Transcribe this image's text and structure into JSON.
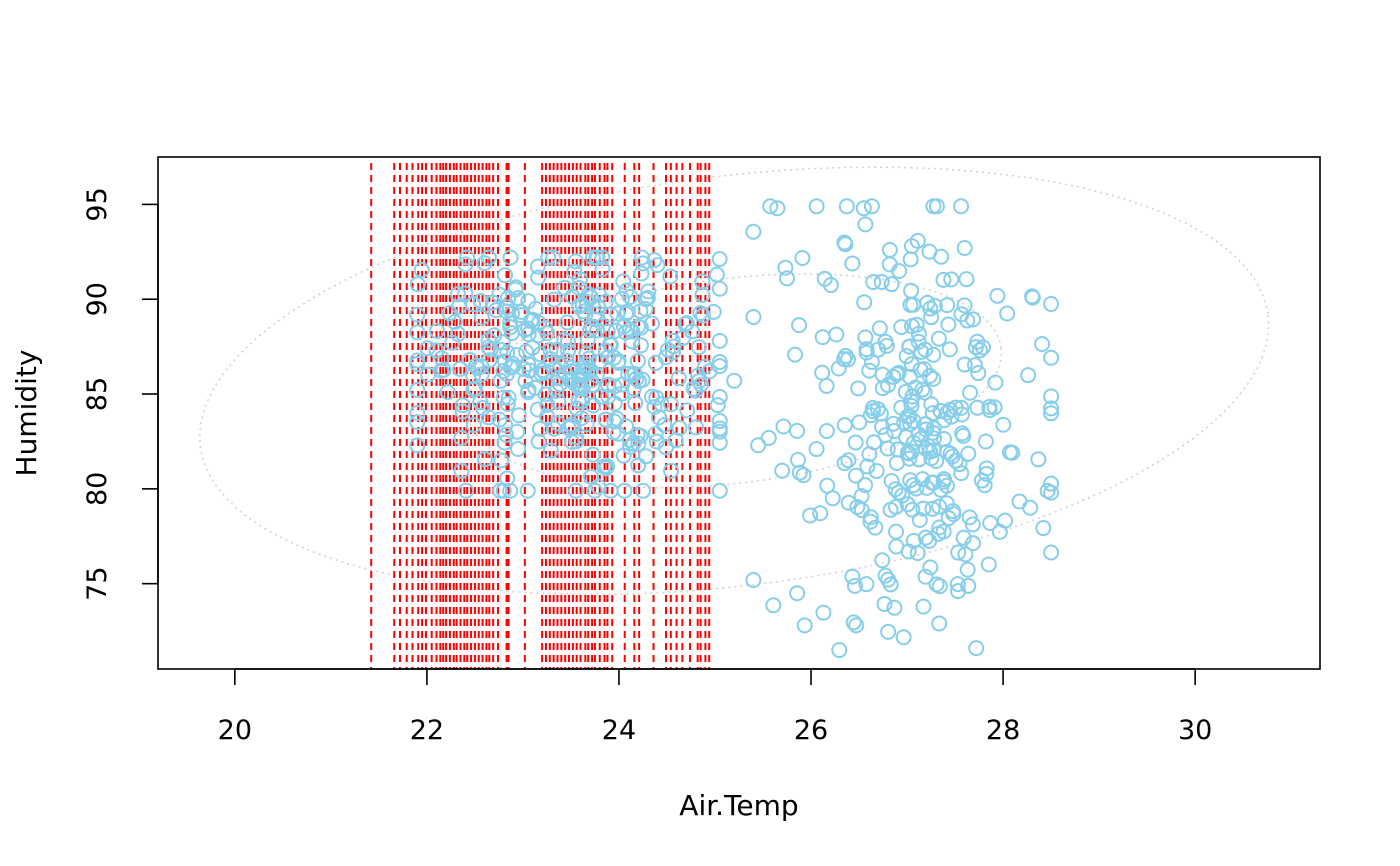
{
  "chart_data": {
    "type": "scatter",
    "title": "",
    "xlabel": "Air.Temp",
    "ylabel": "Humidity",
    "xlim": [
      19.2,
      31.3
    ],
    "ylim": [
      70.5,
      97.5
    ],
    "x_ticks": [
      20,
      22,
      24,
      26,
      28,
      30
    ],
    "x_tick_labels": [
      "20",
      "22",
      "24",
      "26",
      "28",
      "30"
    ],
    "y_ticks": [
      75,
      80,
      85,
      90,
      95
    ],
    "y_tick_labels": [
      "75",
      "80",
      "85",
      "90",
      "95"
    ],
    "grid": false,
    "legend": "none",
    "colors": {
      "points": "#87ceeb",
      "vlines": "#ff0000",
      "ellipse": "#d3d3d3"
    },
    "vertical_lines_x": [
      21.42,
      21.66,
      21.72,
      21.79,
      21.85,
      21.91,
      21.95,
      21.99,
      22.05,
      22.1,
      22.14,
      22.17,
      22.2,
      22.24,
      22.28,
      22.31,
      22.35,
      22.39,
      22.42,
      22.46,
      22.5,
      22.54,
      22.58,
      22.62,
      22.65,
      22.69,
      22.74,
      22.83,
      22.85,
      23.02,
      23.2,
      23.24,
      23.28,
      23.32,
      23.36,
      23.4,
      23.44,
      23.48,
      23.52,
      23.56,
      23.6,
      23.65,
      23.68,
      23.72,
      23.75,
      23.8,
      23.85,
      23.88,
      23.93,
      24.06,
      24.16,
      24.21,
      24.36,
      24.49,
      24.54,
      24.6,
      24.66,
      24.74,
      24.82,
      24.85,
      24.9,
      24.94
    ],
    "ellipses": [
      {
        "name": "",
        "style": "dotted",
        "center": [
          25.2,
          85.7
        ],
        "rx": 5.6,
        "ry": 10.8,
        "tilt_deg": -7
      },
      {
        "name": "",
        "style": "dotted",
        "center": [
          25.2,
          85.7
        ],
        "rx": 2.8,
        "ry": 5.4,
        "tilt_deg": -7
      }
    ],
    "clusters": [
      {
        "name": "",
        "center": [
          23.5,
          86.5
        ],
        "sd": [
          0.8,
          3.0
        ],
        "n": 340,
        "range_x": [
          21.9,
          25.05
        ],
        "range_y": [
          79.9,
          92.2
        ]
      },
      {
        "name": "",
        "center": [
          27.1,
          83.0
        ],
        "sd": [
          0.65,
          5.0
        ],
        "n": 300,
        "range_x": [
          25.4,
          28.5
        ],
        "range_y": [
          71.5,
          94.9
        ]
      }
    ],
    "extra_points": [
      [
        25.65,
        94.8
      ],
      [
        26.55,
        94.8
      ],
      [
        25.2,
        85.7
      ],
      [
        25.45,
        82.3
      ],
      [
        25.75,
        91.1
      ],
      [
        28.5,
        79.8
      ],
      [
        27.72,
        71.6
      ],
      [
        26.47,
        72.8
      ],
      [
        27.05,
        92.8
      ],
      [
        27.6,
        92.7
      ],
      [
        22.6,
        91.9
      ],
      [
        23.55,
        92.0
      ],
      [
        24.4,
        91.8
      ],
      [
        25.02,
        91.3
      ],
      [
        22.8,
        79.9
      ],
      [
        23.05,
        79.9
      ],
      [
        22.4,
        90.3
      ],
      [
        22.1,
        87.3
      ]
    ]
  }
}
